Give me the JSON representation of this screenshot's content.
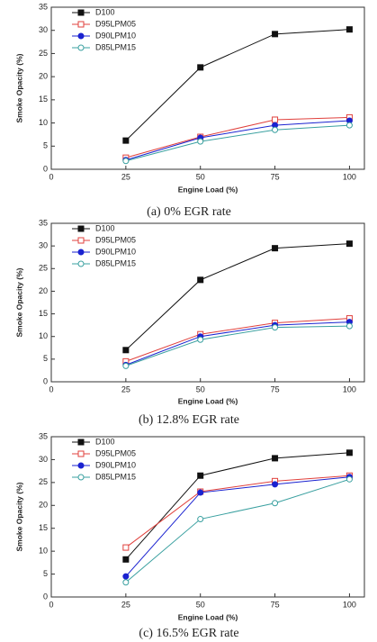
{
  "chart_data": [
    {
      "type": "line",
      "caption": "(a)  0%  EGR rate",
      "x_label": "Engine Load (%)",
      "y_label": "Smoke Opacity (%)",
      "x": [
        25,
        50,
        75,
        100
      ],
      "xlim": [
        0,
        105
      ],
      "xticks": [
        0,
        25,
        50,
        75,
        100
      ],
      "ylim": [
        0,
        35
      ],
      "yticks": [
        0,
        5,
        10,
        15,
        20,
        25,
        30,
        35
      ],
      "series": [
        {
          "name": "D100",
          "color": "#111111",
          "marker": "square",
          "filled": true,
          "values": [
            6.2,
            22,
            29.2,
            30.2
          ]
        },
        {
          "name": "D95LPM05",
          "color": "#e0403c",
          "marker": "square",
          "filled": false,
          "values": [
            2.5,
            7,
            10.7,
            11.2
          ]
        },
        {
          "name": "D90LPM10",
          "color": "#1a22d0",
          "marker": "circle",
          "filled": true,
          "values": [
            2.0,
            6.8,
            9.5,
            10.5
          ]
        },
        {
          "name": "D85LPM15",
          "color": "#3aa0a0",
          "marker": "circle",
          "filled": false,
          "values": [
            1.8,
            6.0,
            8.5,
            9.5
          ]
        }
      ]
    },
    {
      "type": "line",
      "caption": "(b)  12.8%  EGR rate",
      "x_label": "Engine Load (%)",
      "y_label": "Smoke Opacity (%)",
      "x": [
        25,
        50,
        75,
        100
      ],
      "xlim": [
        0,
        105
      ],
      "xticks": [
        0,
        25,
        50,
        75,
        100
      ],
      "ylim": [
        0,
        35
      ],
      "yticks": [
        0,
        5,
        10,
        15,
        20,
        25,
        30,
        35
      ],
      "series": [
        {
          "name": "D100",
          "color": "#111111",
          "marker": "square",
          "filled": true,
          "values": [
            7,
            22.5,
            29.5,
            30.5
          ]
        },
        {
          "name": "D95LPM05",
          "color": "#e0403c",
          "marker": "square",
          "filled": false,
          "values": [
            4.5,
            10.5,
            13,
            14
          ]
        },
        {
          "name": "D90LPM10",
          "color": "#1a22d0",
          "marker": "circle",
          "filled": true,
          "values": [
            3.7,
            10,
            12.5,
            13.2
          ]
        },
        {
          "name": "D85LPM15",
          "color": "#3aa0a0",
          "marker": "circle",
          "filled": false,
          "values": [
            3.5,
            9.3,
            12,
            12.3
          ]
        }
      ]
    },
    {
      "type": "line",
      "caption": "(c)  16.5%  EGR rate",
      "x_label": "Engine Load (%)",
      "y_label": "Smoke Opacity (%)",
      "x": [
        25,
        50,
        75,
        100
      ],
      "xlim": [
        0,
        105
      ],
      "xticks": [
        0,
        25,
        50,
        75,
        100
      ],
      "ylim": [
        0,
        35
      ],
      "yticks": [
        0,
        5,
        10,
        15,
        20,
        25,
        30,
        35
      ],
      "series": [
        {
          "name": "D100",
          "color": "#111111",
          "marker": "square",
          "filled": true,
          "values": [
            8.2,
            26.5,
            30.3,
            31.5
          ]
        },
        {
          "name": "D95LPM05",
          "color": "#e0403c",
          "marker": "square",
          "filled": false,
          "values": [
            10.8,
            23,
            25.3,
            26.5
          ]
        },
        {
          "name": "D90LPM10",
          "color": "#1a22d0",
          "marker": "circle",
          "filled": true,
          "values": [
            4.5,
            22.8,
            24.6,
            26.2
          ]
        },
        {
          "name": "D85LPM15",
          "color": "#3aa0a0",
          "marker": "circle",
          "filled": false,
          "values": [
            3.2,
            17,
            20.5,
            25.7
          ]
        }
      ]
    }
  ]
}
